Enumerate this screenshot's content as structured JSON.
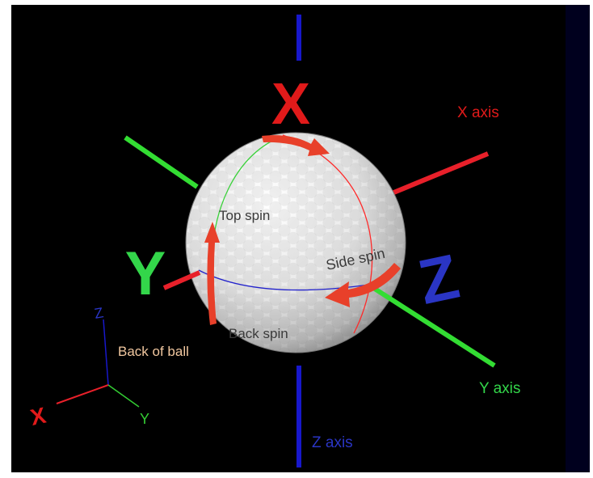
{
  "colors": {
    "background": "#000000",
    "right_strip": "#00001e",
    "x_axis": "#e8202a",
    "y_axis": "#33dd33",
    "z_axis": "#1818cc",
    "label_x": "#e11a1a",
    "label_y": "#33d64a",
    "label_z": "#2a35c4",
    "text_dark": "#3a3a3a",
    "text_peach": "#f2c8a0",
    "arrow": "#e8402a"
  },
  "labels": {
    "big_x": "X",
    "big_y": "Y",
    "big_z": "Z",
    "x_axis": "X axis",
    "y_axis": "Y axis",
    "z_axis": "Z axis",
    "top_spin": "Top spin",
    "side_spin": "Side spin",
    "back_spin": "Back spin",
    "back_of_ball": "Back of ball",
    "mini_x": "X",
    "mini_y": "Y",
    "mini_z": "Z"
  }
}
